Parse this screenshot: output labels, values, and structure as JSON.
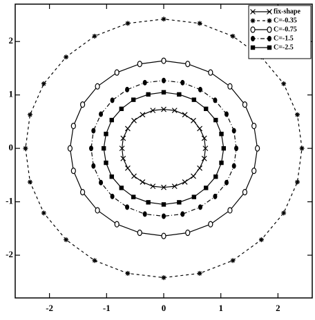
{
  "chart_data": {
    "type": "line",
    "xlim": [
      -2.6,
      2.6
    ],
    "ylim": [
      -2.8,
      2.7
    ],
    "xticks": [
      -2,
      -1,
      0,
      1,
      2
    ],
    "yticks": [
      -2,
      -1,
      0,
      1,
      2
    ],
    "grid": false,
    "legend": "top-right",
    "closed": true,
    "series": [
      {
        "name": "fix-shape",
        "color": "#000000",
        "marker": "x",
        "dash": "solid",
        "x": [
          0.73,
          0.71,
          0.63,
          0.52,
          0.37,
          0.19,
          0,
          -0.19,
          -0.37,
          -0.52,
          -0.63,
          -0.71,
          -0.73,
          -0.71,
          -0.63,
          -0.52,
          -0.37,
          -0.19,
          0,
          0.19,
          0.37,
          0.52,
          0.63,
          0.71
        ],
        "y": [
          0,
          0.19,
          0.37,
          0.52,
          0.63,
          0.71,
          0.73,
          0.71,
          0.63,
          0.52,
          0.37,
          0.19,
          0,
          -0.19,
          -0.37,
          -0.52,
          -0.63,
          -0.71,
          -0.73,
          -0.71,
          -0.63,
          -0.52,
          -0.37,
          -0.19
        ]
      },
      {
        "name": "C=-0.35",
        "color": "#000000",
        "marker": "asterisk",
        "dash": "dashed",
        "x": [
          2.42,
          2.34,
          2.1,
          1.71,
          1.21,
          0.63,
          0,
          -0.63,
          -1.21,
          -1.71,
          -2.1,
          -2.34,
          -2.42,
          -2.34,
          -2.1,
          -1.71,
          -1.21,
          -0.63,
          0,
          0.63,
          1.21,
          1.71,
          2.1,
          2.34
        ],
        "y": [
          0,
          0.63,
          1.21,
          1.71,
          2.1,
          2.34,
          2.42,
          2.34,
          2.1,
          1.71,
          1.21,
          0.63,
          0,
          -0.63,
          -1.21,
          -1.71,
          -2.1,
          -2.34,
          -2.42,
          -2.34,
          -2.1,
          -1.71,
          -1.21,
          -0.63
        ]
      },
      {
        "name": "C=-0.75",
        "color": "#000000",
        "marker": "circle-open",
        "dash": "solid",
        "x": [
          1.64,
          1.58,
          1.42,
          1.16,
          0.82,
          0.42,
          0,
          -0.42,
          -0.82,
          -1.16,
          -1.42,
          -1.58,
          -1.64,
          -1.58,
          -1.42,
          -1.16,
          -0.82,
          -0.42,
          0,
          0.42,
          0.82,
          1.16,
          1.42,
          1.58
        ],
        "y": [
          0,
          0.42,
          0.82,
          1.16,
          1.42,
          1.58,
          1.64,
          1.58,
          1.42,
          1.16,
          0.82,
          0.42,
          0,
          -0.42,
          -0.82,
          -1.16,
          -1.42,
          -1.58,
          -1.64,
          -1.58,
          -1.42,
          -1.16,
          -0.82,
          -0.42
        ]
      },
      {
        "name": "C=-1.5",
        "color": "#000000",
        "marker": "circle",
        "dash": "dashdot",
        "x": [
          1.27,
          1.23,
          1.1,
          0.9,
          0.64,
          0.33,
          0,
          -0.33,
          -0.64,
          -0.9,
          -1.1,
          -1.23,
          -1.27,
          -1.23,
          -1.1,
          -0.9,
          -0.64,
          -0.33,
          0,
          0.33,
          0.64,
          0.9,
          1.1,
          1.23
        ],
        "y": [
          0,
          0.33,
          0.64,
          0.9,
          1.1,
          1.23,
          1.27,
          1.23,
          1.1,
          0.9,
          0.64,
          0.33,
          0,
          -0.33,
          -0.64,
          -0.9,
          -1.1,
          -1.23,
          -1.27,
          -1.23,
          -1.1,
          -0.9,
          -0.64,
          -0.33
        ]
      },
      {
        "name": "C=-2.5",
        "color": "#000000",
        "marker": "square",
        "dash": "solid",
        "x": [
          1.05,
          1.01,
          0.91,
          0.74,
          0.53,
          0.27,
          0,
          -0.27,
          -0.53,
          -0.74,
          -0.91,
          -1.01,
          -1.05,
          -1.01,
          -0.91,
          -0.74,
          -0.53,
          -0.27,
          0,
          0.27,
          0.53,
          0.74,
          0.91,
          1.01
        ],
        "y": [
          0,
          0.27,
          0.53,
          0.74,
          0.91,
          1.01,
          1.05,
          1.01,
          0.91,
          0.74,
          0.53,
          0.27,
          0,
          -0.27,
          -0.53,
          -0.74,
          -0.91,
          -1.01,
          -1.05,
          -1.01,
          -0.91,
          -0.74,
          -0.53,
          -0.27
        ]
      }
    ]
  }
}
